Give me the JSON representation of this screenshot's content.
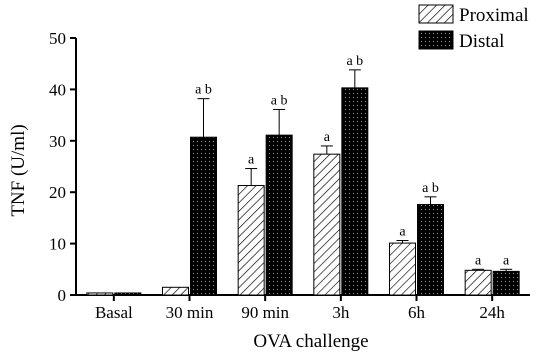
{
  "chart_data": {
    "type": "bar",
    "title": "",
    "xlabel": "OVA challenge",
    "ylabel": "TNF (U/ml)",
    "ylim": [
      0,
      50
    ],
    "yticks": [
      0,
      10,
      20,
      30,
      40,
      50
    ],
    "categories": [
      "Basal",
      "30 min",
      "90 min",
      "3h",
      "6h",
      "24h"
    ],
    "legend_position": "top-right",
    "grid": false,
    "series": [
      {
        "name": "Proximal",
        "pattern": "diagonal-hatch",
        "color": "#ffffff",
        "values": [
          0.4,
          1.5,
          21.3,
          27.4,
          10.1,
          4.8
        ],
        "errors": [
          0,
          0,
          3.3,
          1.6,
          0.5,
          0.2
        ],
        "annotations": [
          "",
          "",
          "a",
          "a",
          "a",
          "a"
        ]
      },
      {
        "name": "Distal",
        "pattern": "black-dotted",
        "color": "#000000",
        "values": [
          0.4,
          30.7,
          31.1,
          40.3,
          17.6,
          4.6
        ],
        "errors": [
          0,
          7.5,
          5.0,
          3.5,
          1.5,
          0.4
        ],
        "annotations": [
          "",
          "a b",
          "a b",
          "a b",
          "a b",
          "a"
        ]
      }
    ]
  }
}
